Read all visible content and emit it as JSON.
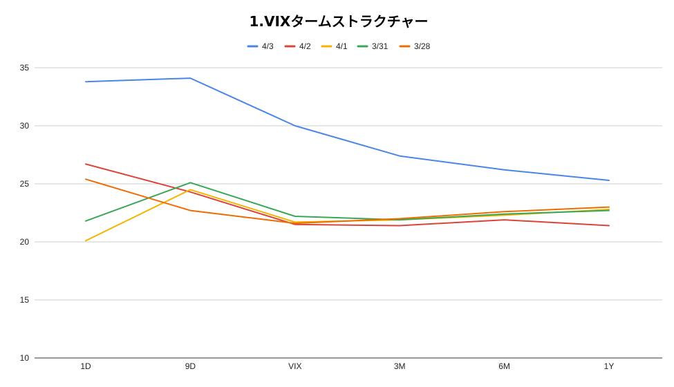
{
  "chart_data": {
    "type": "line",
    "title": "1.VIXタームストラクチャー",
    "xlabel": "",
    "ylabel": "",
    "categories": [
      "1D",
      "9D",
      "VIX",
      "3M",
      "6M",
      "1Y"
    ],
    "ylim": [
      10,
      35
    ],
    "yticks": [
      10,
      15,
      20,
      25,
      30,
      35
    ],
    "grid": true,
    "legend_position": "top",
    "series": [
      {
        "name": "4/3",
        "color": "#4a86e8",
        "values": [
          33.8,
          34.1,
          30.0,
          27.4,
          26.2,
          25.3
        ]
      },
      {
        "name": "4/2",
        "color": "#db4437",
        "values": [
          26.7,
          24.3,
          21.5,
          21.4,
          21.9,
          21.4
        ]
      },
      {
        "name": "4/1",
        "color": "#f4b400",
        "values": [
          20.1,
          24.5,
          21.7,
          21.9,
          22.3,
          22.8
        ]
      },
      {
        "name": "3/31",
        "color": "#3aa757",
        "values": [
          21.8,
          25.1,
          22.2,
          21.9,
          22.4,
          22.7
        ]
      },
      {
        "name": "3/28",
        "color": "#ef6c00",
        "values": [
          25.4,
          22.7,
          21.6,
          22.0,
          22.6,
          23.0
        ]
      }
    ]
  }
}
